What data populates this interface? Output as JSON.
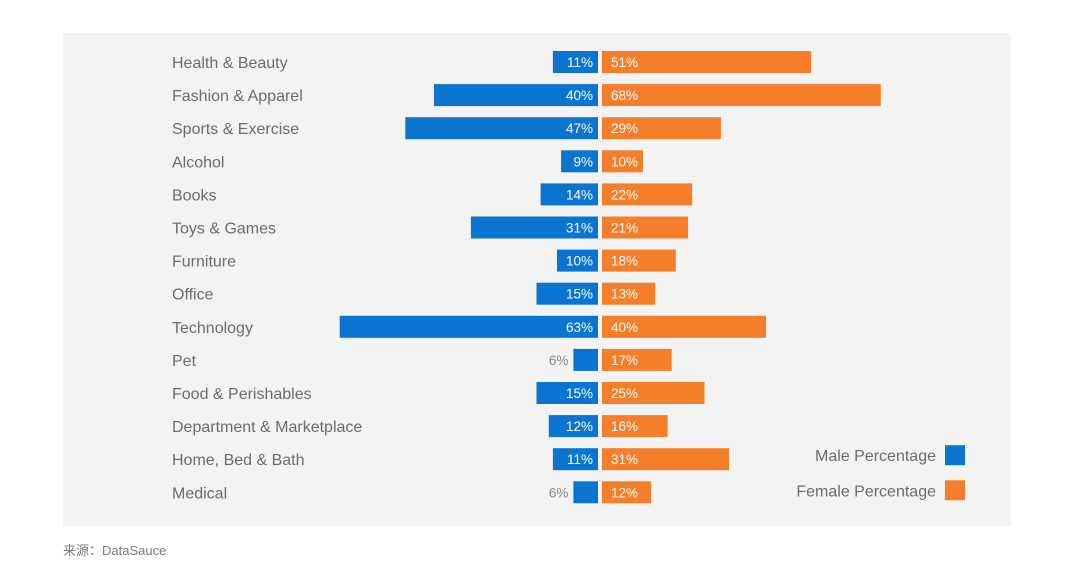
{
  "colors": {
    "male": "#0a74d1",
    "female": "#f57e2a",
    "panel": "#f3f3f3",
    "label": "#6b6b6b"
  },
  "chart_data": {
    "type": "bar",
    "orientation": "horizontal-diverging",
    "categories": [
      "Health & Beauty",
      "Fashion & Apparel",
      "Sports & Exercise",
      "Alcohol",
      "Books",
      "Toys & Games",
      "Furniture",
      "Office",
      "Technology",
      "Pet",
      "Food & Perishables",
      "Department & Marketplace",
      "Home, Bed & Bath",
      "Medical"
    ],
    "series": [
      {
        "name": "Male Percentage",
        "direction": "left",
        "values": [
          11,
          40,
          47,
          9,
          14,
          31,
          10,
          15,
          63,
          6,
          15,
          12,
          11,
          6
        ]
      },
      {
        "name": "Female Percentage",
        "direction": "right",
        "values": [
          51,
          68,
          29,
          10,
          22,
          21,
          18,
          13,
          40,
          17,
          25,
          16,
          31,
          12
        ]
      }
    ],
    "value_suffix": "%",
    "legend": [
      "Male Percentage",
      "Female Percentage"
    ],
    "legend_position": "bottom-right"
  },
  "footer": {
    "source": "来源：DataSauce"
  }
}
